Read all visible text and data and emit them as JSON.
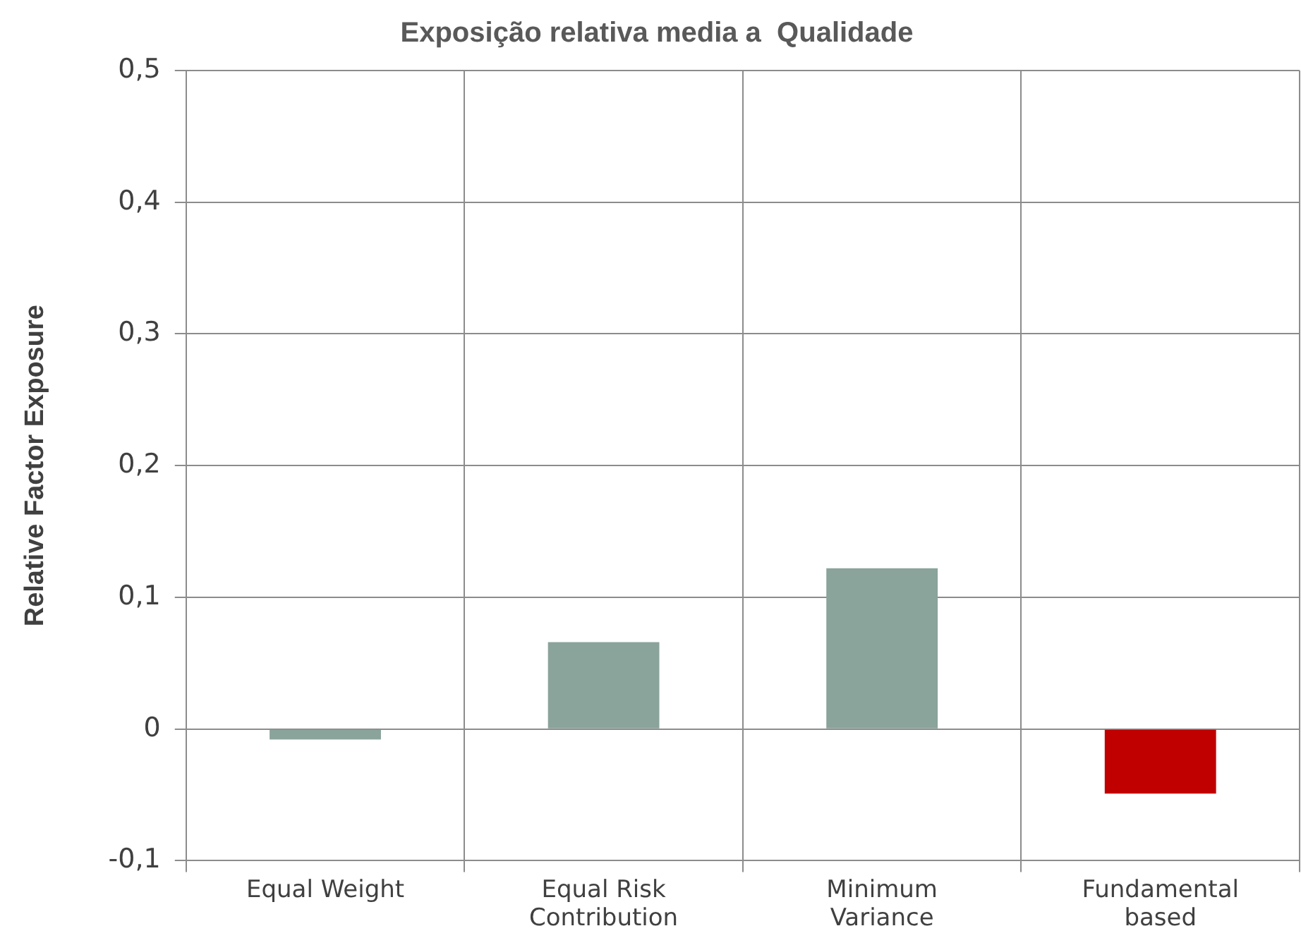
{
  "chart_data": {
    "type": "bar",
    "title": "Exposição relativa media a  Qualidade",
    "ylabel": "Relative Factor Exposure",
    "categories": [
      "Equal Weight",
      "Equal Risk Contribution",
      "Minimum Variance",
      "Fundamental based"
    ],
    "values": [
      -0.008,
      0.066,
      0.122,
      -0.049
    ],
    "colors": [
      "#8aa39b",
      "#8aa39b",
      "#8aa39b",
      "#c00000"
    ],
    "ylim": [
      -0.1,
      0.5
    ],
    "yticks": [
      {
        "value": -0.1,
        "label": "-0,1"
      },
      0,
      {
        "value": 0.1,
        "label": "0,1"
      },
      {
        "value": 0.2,
        "label": "0,2"
      },
      {
        "value": 0.3,
        "label": "0,3"
      },
      {
        "value": 0.4,
        "label": "0,4"
      },
      {
        "value": 0.5,
        "label": "0,5"
      }
    ],
    "grid": true,
    "legend": false
  }
}
